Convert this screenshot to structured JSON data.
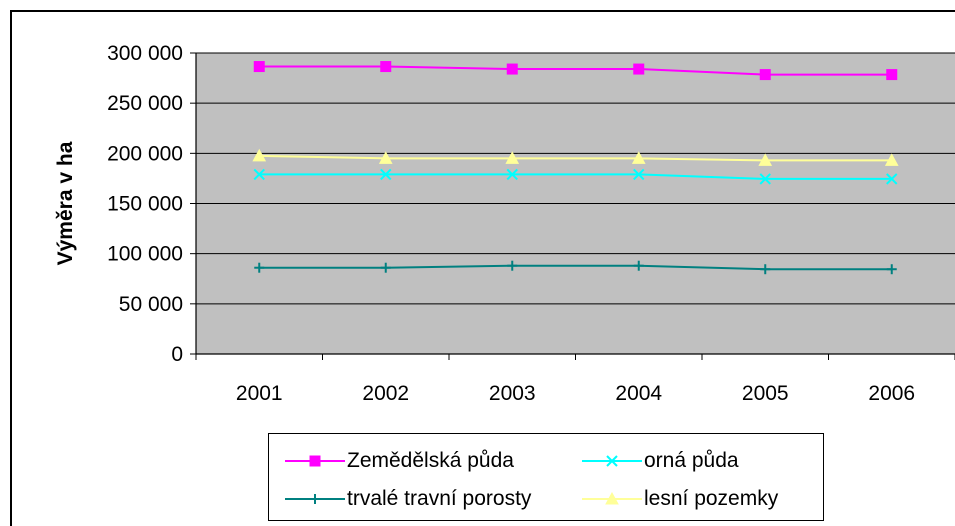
{
  "title": "",
  "chart_data": {
    "type": "line",
    "title": "",
    "xlabel": "",
    "ylabel": "Výměra v ha",
    "categories": [
      "2001",
      "2002",
      "2003",
      "2004",
      "2005",
      "2006"
    ],
    "ylim": [
      0,
      300000
    ],
    "yticks": [
      0,
      50000,
      100000,
      150000,
      200000,
      250000,
      300000
    ],
    "ytick_labels": [
      "0",
      "50 000",
      "100 000",
      "150 000",
      "200 000",
      "250 000",
      "300 000"
    ],
    "grid": true,
    "plot_background": "#c0c0c0",
    "legend_position": "bottom",
    "series": [
      {
        "name": "Zemědělská půda",
        "color": "#ff00ff",
        "marker": "square",
        "values": [
          286500,
          286500,
          284000,
          284000,
          278500,
          278500
        ]
      },
      {
        "name": "orná půda",
        "color": "#00ffff",
        "marker": "x",
        "values": [
          179000,
          179000,
          179000,
          179000,
          174500,
          174500
        ]
      },
      {
        "name": "trvalé travní porosty",
        "color": "#008080",
        "marker": "plus",
        "values": [
          86000,
          86000,
          88000,
          88000,
          84500,
          84500
        ]
      },
      {
        "name": "lesní pozemky",
        "color": "#ffff99",
        "marker": "triangle",
        "values": [
          197500,
          195000,
          195000,
          195000,
          193000,
          193000
        ]
      }
    ]
  }
}
